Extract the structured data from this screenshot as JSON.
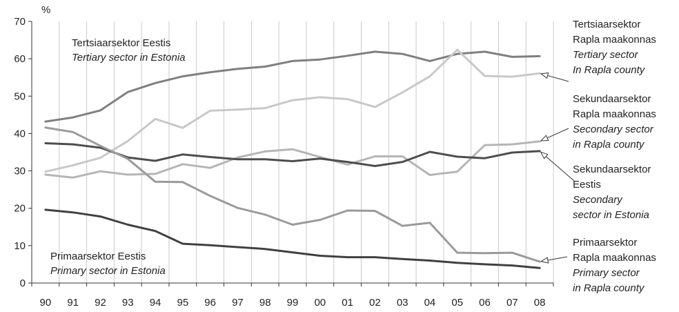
{
  "chart_data": {
    "type": "line",
    "ylabel": "%",
    "ylim": [
      0,
      70
    ],
    "yticks": [
      "0",
      "10",
      "20",
      "30",
      "40",
      "50",
      "60",
      "70"
    ],
    "categories": [
      "90",
      "91",
      "92",
      "93",
      "94",
      "95",
      "96",
      "97",
      "98",
      "99",
      "00",
      "01",
      "02",
      "03",
      "04",
      "05",
      "06",
      "07",
      "08"
    ],
    "grid": "vertical",
    "series": [
      {
        "key": "tert_est",
        "color": "#7f7f7f",
        "values": [
          43.2,
          44.3,
          46.2,
          51.1,
          53.5,
          55.3,
          56.4,
          57.3,
          57.9,
          59.4,
          59.8,
          60.8,
          61.9,
          61.3,
          59.4,
          61.3,
          61.9,
          60.5,
          60.7
        ]
      },
      {
        "key": "tert_rapla",
        "color": "#c8c8c8",
        "values": [
          29.8,
          31.5,
          33.5,
          38.0,
          43.9,
          41.5,
          46.1,
          46.4,
          46.8,
          48.9,
          49.7,
          49.2,
          47.1,
          51.0,
          55.3,
          62.4,
          55.4,
          55.2,
          56.1
        ]
      },
      {
        "key": "sec_rapla",
        "color": "#b5b5b5",
        "values": [
          29.0,
          28.2,
          29.9,
          29.0,
          29.2,
          31.8,
          30.8,
          33.6,
          35.2,
          35.8,
          33.7,
          31.7,
          33.9,
          33.9,
          28.9,
          29.8,
          36.9,
          37.1,
          37.9
        ]
      },
      {
        "key": "sec_est",
        "color": "#4d4d4d",
        "values": [
          37.4,
          37.1,
          36.2,
          33.6,
          32.7,
          34.4,
          33.7,
          33.1,
          33.1,
          32.6,
          33.3,
          32.4,
          31.3,
          32.4,
          35.1,
          33.8,
          33.4,
          34.9,
          35.3
        ]
      },
      {
        "key": "prim_rapla",
        "color": "#9a9a9a",
        "values": [
          41.6,
          40.4,
          36.7,
          33.2,
          27.1,
          27.0,
          23.3,
          20.1,
          18.3,
          15.6,
          16.9,
          19.4,
          19.3,
          15.3,
          16.1,
          8.1,
          8.0,
          8.1,
          5.7
        ]
      },
      {
        "key": "prim_est",
        "color": "#404040",
        "values": [
          19.6,
          18.9,
          17.8,
          15.6,
          13.9,
          10.5,
          10.1,
          9.6,
          9.1,
          8.2,
          7.3,
          6.9,
          6.9,
          6.4,
          6.0,
          5.4,
          5.0,
          4.7,
          4.0
        ]
      }
    ],
    "annotations": {
      "tert_est": [
        "Tertsiaarsektor Eestis",
        "Tertiary sector in Estonia"
      ],
      "prim_est": [
        "Primaarsektor Eestis",
        "Primary sector in Estonia"
      ],
      "tert_rapla": [
        "Tertsiaarsektor",
        "Rapla maakonnas",
        "Tertiary sector",
        "In Rapla county"
      ],
      "sec_rapla": [
        "Sekundaarsektor",
        "Rapla maakonnas",
        "Secondary sector",
        "in Rapla county"
      ],
      "sec_est": [
        "Sekundaarsektor",
        "Eestis",
        "Secondary",
        "sector in Estonia"
      ],
      "prim_rapla": [
        "Primaarsektor",
        "Rapla maakonnas",
        "Primary sector",
        "in Rapla county"
      ]
    }
  }
}
